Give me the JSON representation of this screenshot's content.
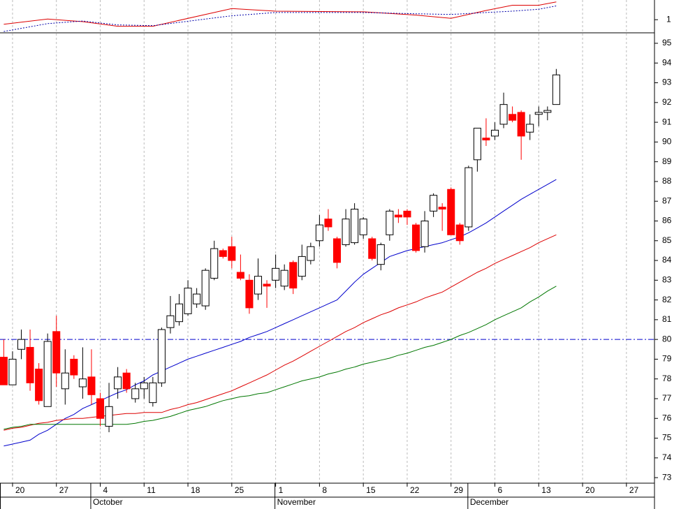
{
  "chart_data": [
    {
      "type": "candlestick",
      "x": [
        0,
        1,
        2,
        3,
        4,
        5,
        6,
        7,
        8,
        9,
        10,
        11,
        12,
        13,
        14,
        15,
        16,
        17,
        18,
        19,
        20,
        21,
        22,
        23,
        24,
        25,
        26,
        27,
        28,
        29,
        30,
        31,
        32,
        33,
        34,
        35,
        36,
        37,
        38,
        39,
        40,
        41,
        42,
        43,
        44,
        45,
        46,
        47,
        48,
        49,
        50,
        51,
        52,
        53,
        54,
        55,
        56,
        57,
        58,
        59,
        60,
        61,
        62,
        63
      ],
      "open": [
        79.1,
        77.7,
        79.5,
        79.6,
        78.5,
        76.6,
        80.4,
        77.5,
        79.0,
        77.6,
        78.1,
        77.0,
        75.6,
        77.5,
        78.3,
        77.0,
        77.5,
        76.8,
        77.8,
        80.6,
        80.9,
        81.3,
        81.8,
        81.7,
        83.1,
        84.5,
        84.7,
        83.4,
        83.0,
        82.3,
        82.8,
        83.0,
        82.7,
        83.9,
        83.2,
        84.0,
        85.0,
        86.1,
        85.1,
        84.8,
        84.9,
        85.3,
        85.1,
        83.8,
        85.3,
        86.3,
        86.5,
        85.8,
        84.7,
        86.5,
        86.7,
        87.6,
        85.8,
        85.7,
        89.1,
        90.2,
        90.3,
        90.9,
        91.4,
        91.5,
        90.5,
        91.4,
        91.5,
        91.9
      ],
      "high": [
        80.0,
        79.4,
        80.5,
        80.5,
        78.8,
        80.3,
        81.2,
        79.5,
        79.2,
        79.6,
        79.5,
        77.3,
        77.8,
        78.6,
        78.5,
        77.8,
        78.1,
        78.1,
        80.6,
        82.2,
        82.3,
        83.0,
        82.6,
        83.6,
        85.0,
        84.6,
        85.2,
        84.3,
        83.3,
        84.1,
        83.0,
        84.3,
        83.8,
        84.0,
        84.8,
        84.9,
        86.3,
        86.6,
        85.2,
        86.6,
        86.9,
        86.2,
        85.2,
        84.9,
        86.6,
        86.6,
        86.6,
        85.9,
        86.5,
        87.4,
        86.9,
        87.7,
        85.9,
        88.8,
        90.7,
        91.2,
        91.0,
        92.5,
        91.8,
        91.6,
        91.4,
        91.8,
        91.8,
        93.7
      ],
      "low": [
        77.7,
        77.7,
        79.0,
        77.4,
        76.7,
        76.6,
        77.6,
        76.7,
        78.0,
        77.0,
        76.7,
        75.6,
        75.3,
        77.0,
        77.3,
        76.8,
        77.0,
        76.6,
        77.6,
        80.3,
        80.7,
        81.2,
        81.6,
        81.5,
        83.0,
        84.1,
        83.6,
        83.0,
        81.3,
        82.0,
        81.6,
        82.6,
        82.5,
        82.3,
        83.0,
        83.8,
        84.7,
        85.5,
        83.6,
        84.7,
        84.8,
        85.1,
        84.0,
        83.5,
        85.0,
        85.9,
        85.8,
        84.4,
        84.4,
        86.2,
        85.5,
        85.3,
        84.8,
        85.5,
        88.5,
        89.8,
        90.1,
        90.7,
        91.0,
        89.1,
        90.1,
        90.8,
        91.1,
        91.9
      ],
      "close": [
        77.7,
        79.0,
        80.0,
        77.8,
        76.9,
        79.9,
        78.3,
        78.3,
        78.2,
        78.0,
        77.2,
        76.0,
        76.6,
        78.1,
        77.5,
        77.5,
        77.8,
        77.8,
        80.5,
        81.2,
        81.8,
        82.6,
        82.3,
        83.5,
        84.6,
        84.2,
        84.0,
        83.1,
        81.6,
        83.2,
        82.7,
        83.6,
        83.5,
        82.6,
        84.2,
        84.7,
        85.8,
        85.7,
        83.9,
        86.1,
        86.6,
        86.1,
        84.1,
        84.8,
        86.5,
        86.2,
        86.2,
        84.5,
        86.0,
        87.3,
        86.6,
        85.3,
        85.0,
        88.7,
        90.7,
        90.1,
        90.6,
        91.9,
        91.1,
        90.3,
        90.9,
        91.5,
        91.6,
        93.4
      ],
      "up_color": "#ffffff",
      "down_color": "#ff0000",
      "series": [
        {
          "color": "#0000cc",
          "values": [
            74.6,
            74.7,
            74.8,
            74.9,
            75.2,
            75.4,
            75.7,
            76.0,
            76.2,
            76.5,
            76.7,
            76.9,
            77.1,
            77.3,
            77.45,
            77.7,
            77.9,
            78.2,
            78.4,
            78.6,
            78.8,
            79.0,
            79.15,
            79.3,
            79.45,
            79.6,
            79.75,
            79.9,
            80.1,
            80.25,
            80.4,
            80.6,
            80.8,
            81.0,
            81.2,
            81.4,
            81.6,
            81.8,
            82.0,
            82.45,
            82.9,
            83.3,
            83.6,
            83.9,
            84.2,
            84.35,
            84.5,
            84.6,
            84.7,
            84.8,
            84.9,
            85.05,
            85.2,
            85.4,
            85.65,
            85.9,
            86.2,
            86.5,
            86.8,
            87.1,
            87.35,
            87.6,
            87.85,
            88.1
          ]
        },
        {
          "color": "#dd0000",
          "values": [
            75.4,
            75.5,
            75.55,
            75.65,
            75.75,
            75.8,
            75.9,
            75.95,
            76.0,
            76.0,
            76.05,
            76.1,
            76.15,
            76.2,
            76.25,
            76.25,
            76.3,
            76.3,
            76.3,
            76.45,
            76.55,
            76.7,
            76.8,
            76.95,
            77.1,
            77.25,
            77.4,
            77.6,
            77.8,
            78.0,
            78.2,
            78.45,
            78.7,
            78.9,
            79.15,
            79.4,
            79.65,
            79.9,
            80.15,
            80.4,
            80.6,
            80.85,
            81.05,
            81.25,
            81.4,
            81.6,
            81.75,
            81.9,
            82.1,
            82.25,
            82.4,
            82.65,
            82.9,
            83.15,
            83.4,
            83.6,
            83.85,
            84.05,
            84.25,
            84.45,
            84.65,
            84.9,
            85.1,
            85.3
          ]
        },
        {
          "color": "#007700",
          "values": [
            75.45,
            75.55,
            75.6,
            75.7,
            75.7,
            75.7,
            75.7,
            75.7,
            75.7,
            75.7,
            75.7,
            75.7,
            75.7,
            75.7,
            75.7,
            75.75,
            75.85,
            75.9,
            76.0,
            76.1,
            76.25,
            76.4,
            76.5,
            76.6,
            76.75,
            76.9,
            77.0,
            77.1,
            77.15,
            77.25,
            77.3,
            77.45,
            77.6,
            77.75,
            77.9,
            78.0,
            78.1,
            78.25,
            78.35,
            78.5,
            78.6,
            78.75,
            78.85,
            78.95,
            79.05,
            79.2,
            79.3,
            79.45,
            79.6,
            79.7,
            79.85,
            80.0,
            80.2,
            80.35,
            80.55,
            80.75,
            81.0,
            81.2,
            81.4,
            81.6,
            81.9,
            82.15,
            82.45,
            82.7
          ]
        }
      ],
      "hlines": [
        {
          "value": 80,
          "color": "#0000cc"
        }
      ],
      "xlim": [
        -0.43,
        74.2
      ],
      "xticks": [
        {
          "value": 1,
          "label": "20"
        },
        {
          "value": 6,
          "label": "27"
        },
        {
          "value": 11,
          "label": "4"
        },
        {
          "value": 16,
          "label": "11"
        },
        {
          "value": 21,
          "label": "18"
        },
        {
          "value": 26,
          "label": "25"
        },
        {
          "value": 31,
          "label": "1"
        },
        {
          "value": 36,
          "label": "8"
        },
        {
          "value": 41,
          "label": "15"
        },
        {
          "value": 46,
          "label": "22"
        },
        {
          "value": 51,
          "label": "29"
        },
        {
          "value": 56,
          "label": "6"
        },
        {
          "value": 61,
          "label": "13"
        },
        {
          "value": 66,
          "label": "20"
        },
        {
          "value": 71,
          "label": "27"
        }
      ],
      "month_ticks": [
        {
          "value": 10,
          "label": "October"
        },
        {
          "value": 31,
          "label": "November"
        },
        {
          "value": 53,
          "label": "December"
        }
      ],
      "ylim": [
        72.72,
        95.53
      ],
      "yticks": [
        73,
        74,
        75,
        76,
        77,
        78,
        79,
        80,
        81,
        82,
        83,
        84,
        85,
        86,
        87,
        88,
        89,
        90,
        91,
        92,
        93,
        94,
        95
      ],
      "grid": true
    },
    {
      "type": "line",
      "x": [
        0,
        5,
        9,
        13,
        17,
        26,
        31,
        41,
        47,
        51,
        55,
        58,
        61,
        63
      ],
      "series": [
        {
          "color": "#dd0000",
          "values": [
            0.993,
            1.001,
            0.997,
            0.99,
            0.99,
            1.017,
            1.013,
            1.012,
            1.007,
            1.002,
            1.014,
            1.022,
            1.022,
            1.027
          ]
        },
        {
          "color": "#0000aa",
          "dash": true,
          "values": [
            0.982,
            0.994,
            0.998,
            0.992,
            0.991,
            1.006,
            1.011,
            1.011,
            1.009,
            1.008,
            1.011,
            1.013,
            1.016,
            1.021
          ]
        }
      ],
      "xlim": [
        -0.43,
        74.2
      ],
      "ylim": [
        0.98,
        1.03
      ],
      "yticks": [
        1
      ]
    }
  ]
}
